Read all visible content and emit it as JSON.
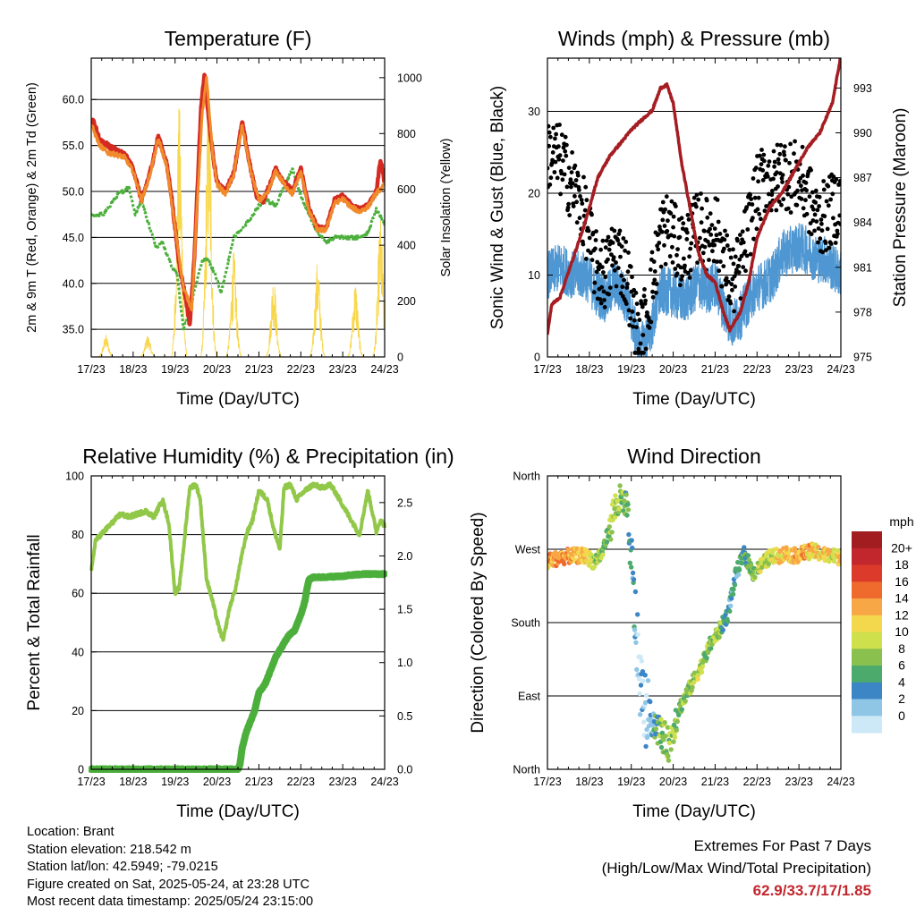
{
  "x_ticks": [
    "17/23",
    "18/23",
    "19/23",
    "20/23",
    "21/23",
    "22/23",
    "23/23",
    "24/23"
  ],
  "colors": {
    "red": "#d42a22",
    "orange": "#f08a2a",
    "green": "#4caf3c",
    "yellow": "#f8d64a",
    "blue": "#4f97d2",
    "maroon": "#a51d22",
    "light_green": "#92c849",
    "dark_green": "#4caf3c"
  },
  "info": {
    "location": "Location: Brant",
    "elevation": "Station elevation: 218.542 m",
    "latlon": "Station lat/lon: 42.5949; -79.0215",
    "created": "Figure created on Sat, 2025-05-24, at 23:28 UTC",
    "latest": "Most recent data timestamp: 2025/05/24 23:15:00"
  },
  "extremes": {
    "title": "Extremes For Past 7 Days",
    "subtitle": "(High/Low/Max Wind/Total Precipitation)",
    "values": "62.9/33.7/17/1.85"
  },
  "chart_data": [
    {
      "id": "temperature",
      "type": "line",
      "title": "Temperature (F)",
      "xlabel": "Time (Day/UTC)",
      "ylabel": "2m & 9m T (Red, Orange) & 2m Td (Green)",
      "y2label": "Solar Insolation (Yellow)",
      "x_range": [
        0,
        7
      ],
      "ylim": [
        32,
        64.5
      ],
      "yticks": [
        35,
        40,
        45,
        50,
        55,
        60
      ],
      "ytick_labels": [
        "35.0",
        "40.0",
        "45.0",
        "50.0",
        "55.0",
        "60.0"
      ],
      "y2lim": [
        0,
        1070
      ],
      "y2ticks": [
        0,
        200,
        400,
        600,
        800,
        1000
      ],
      "grid": "horizontal",
      "series": [
        {
          "name": "2m T",
          "color": "red",
          "x": [
            0,
            0.05,
            0.2,
            0.4,
            0.6,
            0.8,
            1.0,
            1.2,
            1.4,
            1.6,
            1.8,
            1.9,
            2.0,
            2.1,
            2.25,
            2.35,
            2.45,
            2.55,
            2.62,
            2.7,
            2.8,
            2.9,
            3.0,
            3.2,
            3.4,
            3.6,
            3.8,
            3.95,
            4.1,
            4.2,
            4.4,
            4.6,
            4.8,
            5.0,
            5.2,
            5.4,
            5.6,
            5.8,
            6.0,
            6.2,
            6.4,
            6.6,
            6.8,
            6.9,
            7.0
          ],
          "y": [
            57.5,
            57.8,
            55.5,
            55,
            54.5,
            54,
            52.5,
            49,
            52,
            56,
            53,
            50,
            46,
            42,
            38.5,
            35.5,
            42,
            52,
            59,
            62.8,
            58,
            54,
            51,
            50,
            52,
            57.5,
            52.5,
            49.5,
            49,
            50,
            52.5,
            51,
            50,
            52.5,
            48,
            46,
            46,
            49,
            49.5,
            48.5,
            48,
            48.5,
            50,
            53.5,
            51
          ]
        },
        {
          "name": "9m T",
          "color": "orange",
          "x": [
            0,
            0.2,
            0.4,
            0.6,
            0.8,
            1.0,
            1.2,
            1.4,
            1.6,
            1.8,
            2.0,
            2.2,
            2.4,
            2.55,
            2.65,
            2.75,
            2.9,
            3.0,
            3.2,
            3.4,
            3.6,
            3.8,
            4.0,
            4.2,
            4.4,
            4.6,
            4.8,
            5.0,
            5.2,
            5.4,
            5.6,
            5.8,
            6.0,
            6.2,
            6.4,
            6.6,
            6.8,
            7.0
          ],
          "y": [
            57.3,
            55,
            54.2,
            54,
            53.7,
            52.2,
            49,
            51.8,
            55.7,
            52.8,
            46,
            39.5,
            37.2,
            50.5,
            58.5,
            62.3,
            54,
            50.8,
            49.7,
            51.8,
            57.2,
            52.3,
            49,
            49.7,
            52.2,
            50.8,
            49.7,
            52.2,
            47.8,
            45.8,
            45.8,
            48.7,
            49.2,
            48.3,
            47.8,
            48.3,
            49.8,
            50.7
          ]
        },
        {
          "name": "2m Td",
          "color": "green",
          "x": [
            0,
            0.3,
            0.6,
            0.9,
            1.05,
            1.2,
            1.4,
            1.55,
            1.7,
            1.9,
            2.05,
            2.2,
            2.35,
            2.5,
            2.65,
            2.8,
            2.95,
            3.1,
            3.25,
            3.4,
            3.6,
            3.8,
            4.0,
            4.2,
            4.4,
            4.6,
            4.8,
            5.0,
            5.2,
            5.4,
            5.6,
            5.8,
            6.0,
            6.2,
            6.4,
            6.6,
            6.8,
            7.0
          ],
          "y": [
            47.5,
            47.5,
            49.5,
            50.5,
            47.5,
            49,
            46,
            44,
            44.5,
            42,
            41,
            35,
            37,
            40,
            42.5,
            42.5,
            41,
            39,
            42,
            45,
            46,
            47,
            48.5,
            49,
            48.5,
            50.5,
            52.5,
            49.5,
            47.5,
            45.5,
            44.5,
            45,
            45,
            45,
            45,
            45.5,
            48,
            46.5
          ]
        }
      ],
      "solar_insolation": {
        "name": "Solar Insolation",
        "color": "yellow",
        "peak_day": [
          0.35,
          1.35,
          2.1,
          2.8,
          3.4,
          4.35,
          5.4,
          6.3,
          6.9
        ],
        "peak_value": [
          80,
          80,
          910,
          1020,
          380,
          300,
          350,
          280,
          500
        ]
      }
    },
    {
      "id": "winds",
      "type": "scatter",
      "title": "Winds (mph) & Pressure (mb)",
      "xlabel": "Time (Day/UTC)",
      "ylabel": "Sonic Wind & Gust (Blue, Black)",
      "y2label": "Station Pressure (Maroon)",
      "x_range": [
        0,
        7
      ],
      "ylim": [
        0,
        36.5
      ],
      "yticks": [
        0,
        10,
        20,
        30
      ],
      "y2lim": [
        975,
        995
      ],
      "y2ticks": [
        975,
        978,
        981,
        984,
        987,
        990,
        993
      ],
      "grid": "horizontal",
      "wind_anchors": {
        "x": [
          0,
          0.3,
          0.6,
          0.9,
          1.15,
          1.4,
          1.6,
          1.75,
          1.9,
          2.1,
          2.2,
          2.35,
          2.5,
          2.7,
          2.9,
          3.05,
          3.2,
          3.4,
          3.6,
          3.8,
          4.0,
          4.2,
          4.4,
          4.6,
          4.8,
          5.0,
          5.2,
          5.4,
          5.6,
          5.8,
          6.0,
          6.2,
          6.4,
          6.6,
          6.8,
          7.0
        ],
        "y": [
          10,
          11,
          10,
          10,
          8,
          7,
          9,
          8,
          7,
          3,
          1,
          2,
          4,
          8,
          8,
          7.5,
          7,
          7.5,
          9,
          8,
          9,
          6,
          4,
          5,
          7,
          8.5,
          9,
          10,
          12.5,
          13,
          13.5,
          13,
          12,
          12,
          11,
          10
        ]
      },
      "gust_anchors": {
        "x": [
          0,
          0.3,
          0.6,
          0.9,
          1.15,
          1.4,
          1.6,
          1.75,
          1.9,
          2.1,
          2.2,
          2.35,
          2.5,
          2.7,
          2.9,
          3.05,
          3.2,
          3.4,
          3.6,
          3.8,
          4.0,
          4.2,
          4.4,
          4.6,
          4.8,
          5.0,
          5.2,
          5.4,
          5.6,
          5.8,
          6.0,
          6.2,
          6.4,
          6.6,
          6.8,
          7.0
        ],
        "y": [
          25,
          24,
          21,
          17,
          11,
          10,
          13,
          12,
          10,
          4,
          2,
          5,
          9,
          15,
          16,
          14,
          13,
          14,
          16,
          15,
          16,
          12,
          9,
          11,
          16,
          20,
          22,
          21,
          23,
          22,
          22,
          20,
          17,
          17,
          18,
          19
        ]
      },
      "pressure": {
        "name": "Station Pressure",
        "color": "maroon",
        "x": [
          0,
          0.1,
          0.3,
          0.6,
          0.9,
          1.2,
          1.5,
          1.8,
          2.0,
          2.3,
          2.5,
          2.7,
          2.85,
          3.0,
          3.2,
          3.4,
          3.6,
          3.8,
          4.0,
          4.2,
          4.35,
          4.6,
          4.8,
          5.0,
          5.3,
          5.6,
          5.9,
          6.2,
          6.5,
          6.8,
          7.0
        ],
        "y": [
          976.5,
          978.5,
          979,
          981.5,
          984,
          987,
          988.5,
          989.5,
          990.2,
          991,
          991.5,
          993,
          993.2,
          992,
          988,
          985,
          982,
          980.5,
          980,
          978,
          976.8,
          978,
          980,
          983,
          985,
          986,
          987.5,
          989,
          990,
          992,
          995.2
        ]
      }
    },
    {
      "id": "rh_precip",
      "type": "line",
      "title": "Relative Humidity (%) & Precipitation (in)",
      "xlabel": "Time (Day/UTC)",
      "ylabel": "Percent & Total Rainfall",
      "x_range": [
        0,
        7
      ],
      "ylim": [
        0,
        100
      ],
      "yticks": [
        0,
        20,
        40,
        60,
        80,
        100
      ],
      "y2lim": [
        0,
        2.75
      ],
      "y2ticks": [
        0,
        0.5,
        1.0,
        1.5,
        2.0,
        2.5
      ],
      "y2tick_labels": [
        "0.0",
        "0.5",
        "1.0",
        "1.5",
        "2.0",
        "2.5"
      ],
      "grid": "horizontal",
      "series": [
        {
          "name": "Relative Humidity",
          "color": "light_green",
          "x": [
            0,
            0.1,
            0.3,
            0.5,
            0.7,
            0.9,
            1.1,
            1.3,
            1.5,
            1.7,
            1.85,
            2.0,
            2.1,
            2.2,
            2.35,
            2.5,
            2.6,
            2.75,
            2.9,
            3.05,
            3.15,
            3.3,
            3.45,
            3.55,
            3.7,
            3.85,
            4.0,
            4.2,
            4.35,
            4.5,
            4.6,
            4.75,
            4.9,
            5.1,
            5.3,
            5.5,
            5.7,
            5.8,
            6.0,
            6.2,
            6.4,
            6.6,
            6.7,
            6.8,
            6.9,
            7.0
          ],
          "y": [
            67,
            78,
            81,
            84,
            87,
            86,
            87,
            88,
            86,
            92,
            84,
            60,
            62,
            75,
            96,
            97,
            92,
            65,
            57,
            48,
            44,
            55,
            62,
            70,
            80,
            85,
            95,
            92,
            82,
            75,
            96,
            97,
            92,
            95,
            97,
            96,
            97,
            95,
            90,
            85,
            80,
            95,
            88,
            81,
            85,
            83
          ]
        },
        {
          "name": "Total Rainfall",
          "color": "dark_green",
          "x": [
            0,
            3.5,
            3.55,
            3.6,
            3.7,
            3.8,
            3.9,
            4.0,
            4.15,
            4.25,
            4.4,
            4.55,
            4.7,
            4.85,
            5.0,
            5.1,
            5.15,
            5.2,
            5.3,
            5.35,
            5.4,
            5.5,
            6.0,
            6.2,
            6.5,
            7.0
          ],
          "y": [
            0,
            0,
            0.05,
            0.2,
            0.35,
            0.45,
            0.55,
            0.72,
            0.8,
            0.9,
            1.05,
            1.15,
            1.25,
            1.3,
            1.45,
            1.58,
            1.7,
            1.78,
            1.8,
            1.8,
            1.8,
            1.8,
            1.81,
            1.82,
            1.83,
            1.83
          ]
        }
      ]
    },
    {
      "id": "wind_direction",
      "type": "scatter",
      "title": "Wind Direction",
      "xlabel": "Time (Day/UTC)",
      "ylabel": "Direction (Colored By Speed)",
      "x_range": [
        0,
        7
      ],
      "ylim": [
        0,
        360
      ],
      "yticks": [
        0,
        90,
        180,
        270,
        360
      ],
      "ytick_labels": [
        "North",
        "East",
        "South",
        "West",
        "North"
      ],
      "grid": "horizontal",
      "legend": {
        "title": "mph",
        "labels": [
          "20+",
          "18",
          "16",
          "14",
          "12",
          "10",
          "8",
          "6",
          "4",
          "2",
          "0"
        ],
        "colors": [
          "#a11d20",
          "#c1272d",
          "#dc3a2b",
          "#ee6a2d",
          "#f8a746",
          "#f3d84d",
          "#cfe04d",
          "#8ac04d",
          "#4caa6d",
          "#3d86c6",
          "#8fc6e6",
          "#cde8f6"
        ]
      },
      "direction_anchors": {
        "x": [
          0,
          0.3,
          0.6,
          0.9,
          1.1,
          1.3,
          1.45,
          1.6,
          1.75,
          1.9,
          2.1,
          2.2,
          2.35,
          2.5,
          2.7,
          2.9,
          3.1,
          3.3,
          3.5,
          3.7,
          3.9,
          4.1,
          4.3,
          4.5,
          4.7,
          4.9,
          5.1,
          5.3,
          5.5,
          5.7,
          5.9,
          6.1,
          6.3,
          6.5,
          6.7,
          7.0
        ],
        "y": [
          255,
          260,
          262,
          262,
          255,
          265,
          290,
          320,
          330,
          320,
          180,
          110,
          70,
          60,
          45,
          30,
          70,
          90,
          110,
          130,
          155,
          170,
          190,
          240,
          265,
          240,
          250,
          260,
          262,
          265,
          262,
          265,
          268,
          265,
          262,
          260
        ]
      },
      "speed_anchors": {
        "x": [
          0,
          0.3,
          0.6,
          0.9,
          1.15,
          1.4,
          1.6,
          1.75,
          1.9,
          2.1,
          2.2,
          2.35,
          2.5,
          2.7,
          2.9,
          3.05,
          3.2,
          3.4,
          3.6,
          3.8,
          4.0,
          4.2,
          4.4,
          4.6,
          4.8,
          5.0,
          5.2,
          5.4,
          5.6,
          5.8,
          6.0,
          6.2,
          6.4,
          6.6,
          6.8,
          7.0
        ],
        "y": [
          14,
          15,
          13,
          13,
          8,
          7,
          9,
          8,
          7,
          3,
          1,
          2,
          4,
          8,
          8,
          7.5,
          7,
          7.5,
          9,
          8,
          9,
          6,
          4,
          5,
          7,
          9,
          10,
          11,
          12.5,
          13,
          13.5,
          13,
          12,
          12,
          11,
          12
        ]
      }
    }
  ]
}
